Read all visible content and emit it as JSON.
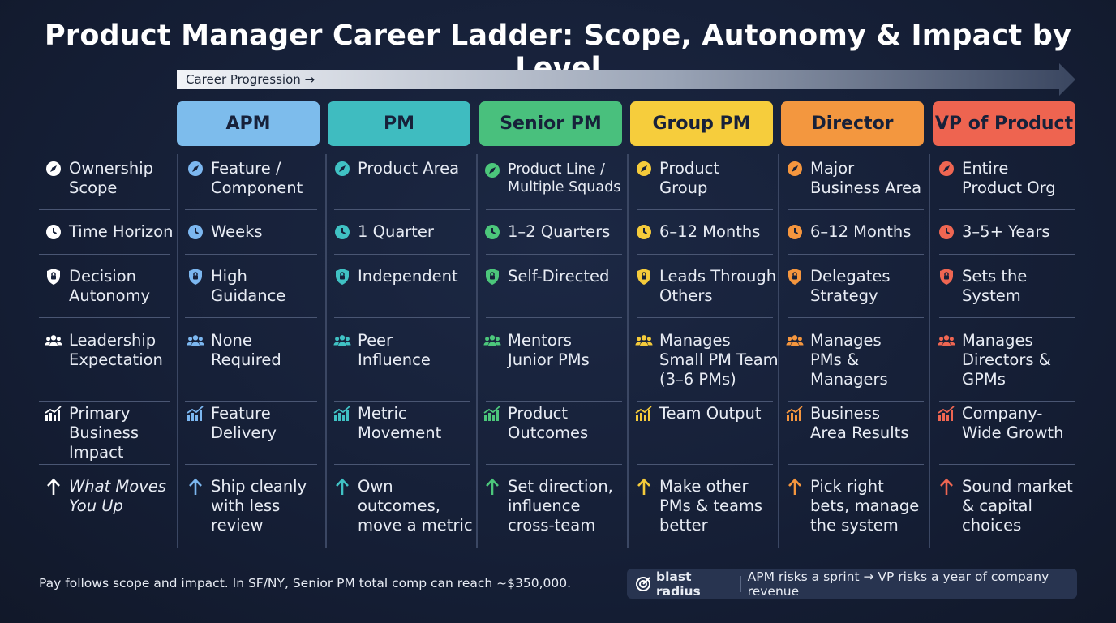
{
  "title": "Product Manager Career Ladder: Scope, Autonomy & Impact by Level",
  "progression_label": "Career Progression →",
  "levels": [
    {
      "name": "APM",
      "color": "#7dbcec",
      "accent": "#7cb7f0"
    },
    {
      "name": "PM",
      "color": "#3fbcc0",
      "accent": "#40c2c4"
    },
    {
      "name": "Senior PM",
      "color": "#49c07d",
      "accent": "#4cc77b"
    },
    {
      "name": "Group PM",
      "color": "#f6cd3c",
      "accent": "#f5cb3b"
    },
    {
      "name": "Director",
      "color": "#f3973f",
      "accent": "#f5963e"
    },
    {
      "name": "VP of Product",
      "color": "#ee6450",
      "accent": "#ef6652"
    }
  ],
  "rows": [
    {
      "label": "Ownership\nScope",
      "icon": "compass-icon",
      "values": [
        "Feature /\nComponent",
        "Product Area",
        "Product Line /\nMultiple Squads",
        "Product\nGroup",
        "Major\nBusiness Area",
        "Entire\nProduct Org"
      ]
    },
    {
      "label": "Time Horizon",
      "icon": "clock-icon",
      "values": [
        "Weeks",
        "1 Quarter",
        "1–2 Quarters",
        "6–12 Months",
        "6–12 Months",
        "3–5+ Years"
      ]
    },
    {
      "label": "Decision\nAutonomy",
      "icon": "shield-lock-icon",
      "values": [
        "High\nGuidance",
        "Independent",
        "Self-Directed",
        "Leads Through\nOthers",
        "Delegates\nStrategy",
        "Sets the\nSystem"
      ]
    },
    {
      "label": "Leadership\nExpectation",
      "icon": "people-icon",
      "values": [
        "None\nRequired",
        "Peer\nInfluence",
        "Mentors\nJunior PMs",
        "Manages\nSmall PM Team\n(3–6 PMs)",
        "Manages\nPMs &\nManagers",
        "Manages\nDirectors &\nGPMs"
      ]
    },
    {
      "label": "Primary\nBusiness\nImpact",
      "icon": "chart-up-icon",
      "values": [
        "Feature\nDelivery",
        "Metric\nMovement",
        "Product\nOutcomes",
        "Team Output",
        "Business\nArea Results",
        "Company-\nWide Growth"
      ]
    },
    {
      "label": "What Moves\nYou Up",
      "icon": "arrow-up-icon",
      "values": [
        "Ship cleanly\nwith less\nreview",
        "Own\noutcomes,\nmove a metric",
        "Set direction,\ninfluence\ncross-team",
        "Make other\nPMs & teams\nbetter",
        "Pick right\nbets, manage\nthe system",
        "Sound market\n& capital\nchoices"
      ]
    }
  ],
  "footer_note": "Pay follows scope and impact. In SF/NY, Senior PM total comp can reach ~$350,000.",
  "badge": {
    "brand": "blast radius",
    "text": "APM risks a sprint → VP risks a year of company revenue"
  }
}
